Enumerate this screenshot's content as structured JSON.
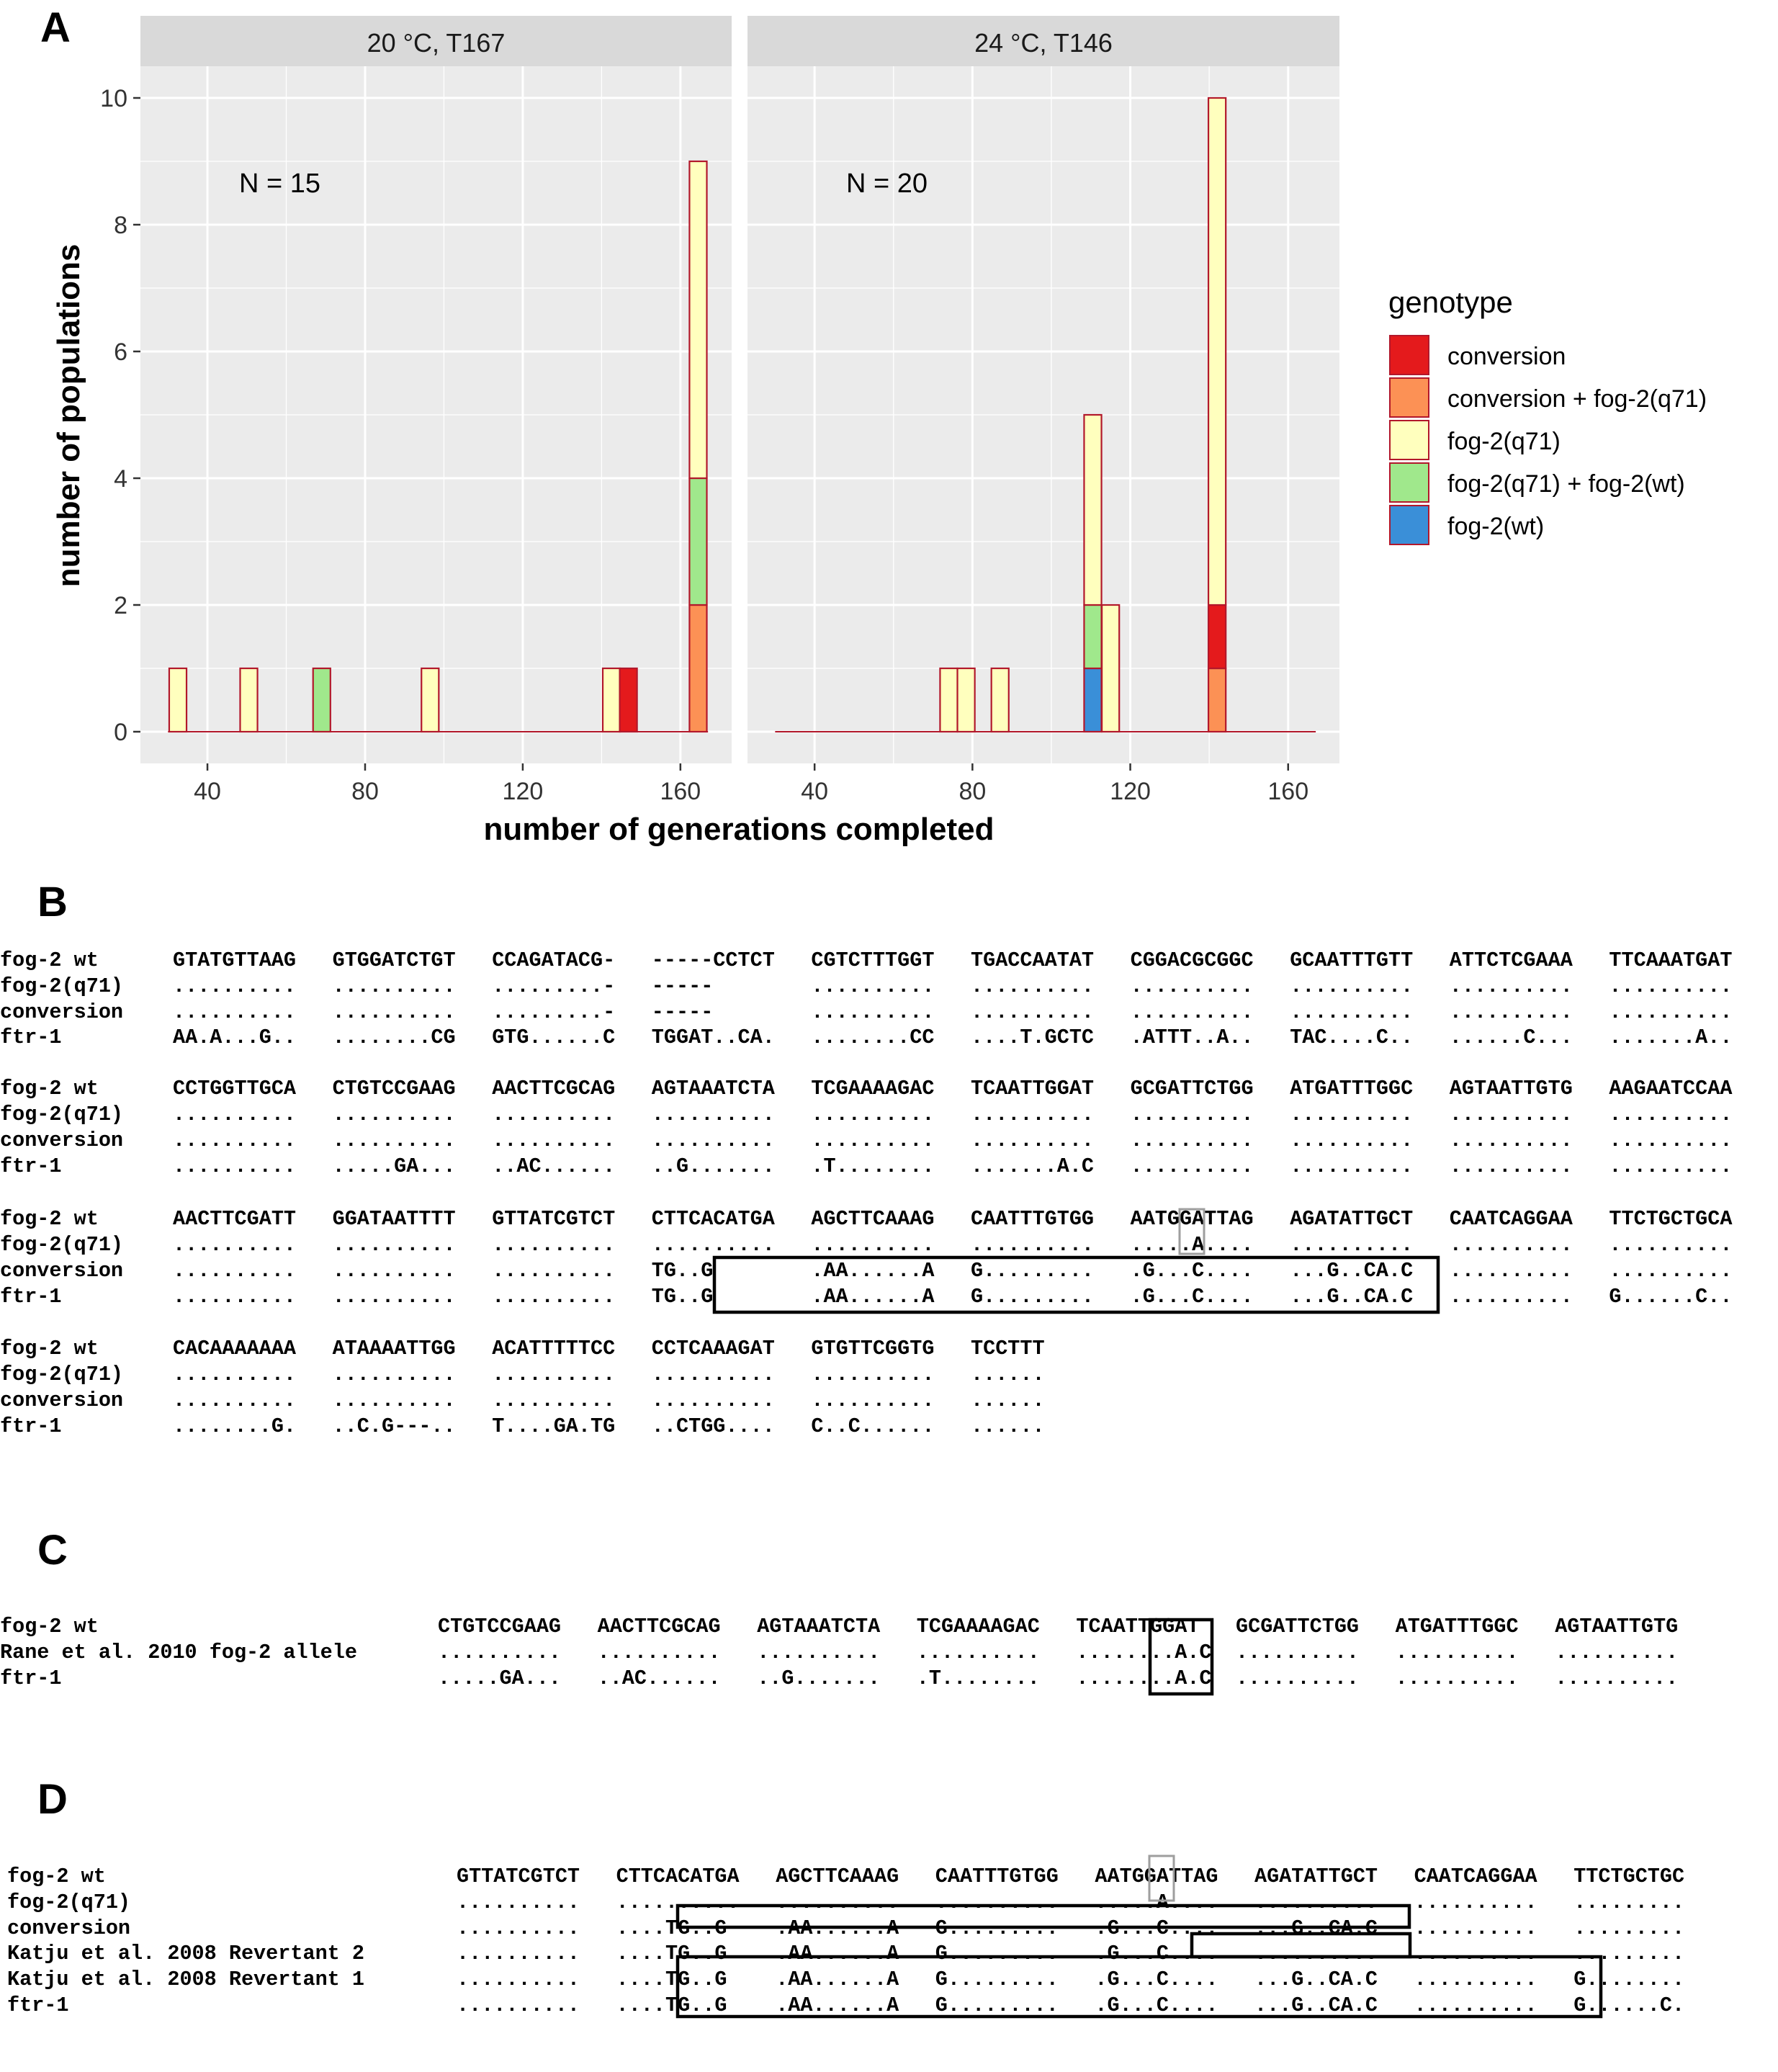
{
  "panel_letters": {
    "A": "A",
    "B": "B",
    "C": "C",
    "D": "D"
  },
  "colors": {
    "conversion": "#e41a1c",
    "conversion + fog-2(q71)": "#fc9155",
    "fog-2(q71)": "#ffffbe",
    "fog-2(q71) + fog-2(wt)": "#a0e88c",
    "fog-2(wt)": "#3a8fd8",
    "bar_outline": "#b2182b",
    "panel_bg": "#ebebeb",
    "strip_bg": "#d9d9d9"
  },
  "chart_data": {
    "type": "bar",
    "stacked": true,
    "xlabel": "number of generations completed",
    "ylabel": "number of populations",
    "xlim": [
      23,
      173
    ],
    "ylim": [
      -0.5,
      10.5
    ],
    "xticks": [
      "40",
      "80",
      "120",
      "160"
    ],
    "yticks": [
      "0",
      "2",
      "4",
      "6",
      "8",
      "10"
    ],
    "grid": true,
    "legend": {
      "title": "genotype",
      "position": "right",
      "entries": [
        "conversion",
        "conversion + fog-2(q71)",
        "fog-2(q71)",
        "fog-2(q71) + fog-2(wt)",
        "fog-2(wt)"
      ]
    },
    "bin_width": 4.4,
    "facets": [
      {
        "strip": "20 °C, T167",
        "n_label": "N = 15",
        "baseline_range": [
          30,
          167
        ],
        "bars": [
          {
            "x": 32.5,
            "stack": [
              {
                "genotype": "fog-2(q71)",
                "count": 1
              }
            ]
          },
          {
            "x": 50.5,
            "stack": [
              {
                "genotype": "fog-2(q71)",
                "count": 1
              }
            ]
          },
          {
            "x": 69,
            "stack": [
              {
                "genotype": "fog-2(q71) + fog-2(wt)",
                "count": 1
              }
            ]
          },
          {
            "x": 96.5,
            "stack": [
              {
                "genotype": "fog-2(q71)",
                "count": 1
              }
            ]
          },
          {
            "x": 142.5,
            "stack": [
              {
                "genotype": "fog-2(q71)",
                "count": 1
              }
            ]
          },
          {
            "x": 146.8,
            "stack": [
              {
                "genotype": "conversion",
                "count": 1
              }
            ]
          },
          {
            "x": 164.5,
            "stack": [
              {
                "genotype": "conversion + fog-2(q71)",
                "count": 2
              },
              {
                "genotype": "fog-2(q71) + fog-2(wt)",
                "count": 2
              },
              {
                "genotype": "fog-2(q71)",
                "count": 5
              }
            ]
          }
        ]
      },
      {
        "strip": "24 °C, T146",
        "n_label": "N = 20",
        "baseline_range": [
          30,
          167
        ],
        "bars": [
          {
            "x": 74,
            "stack": [
              {
                "genotype": "fog-2(q71)",
                "count": 1
              }
            ]
          },
          {
            "x": 78.4,
            "stack": [
              {
                "genotype": "fog-2(q71)",
                "count": 1
              }
            ]
          },
          {
            "x": 87,
            "stack": [
              {
                "genotype": "fog-2(q71)",
                "count": 1
              }
            ]
          },
          {
            "x": 110.5,
            "stack": [
              {
                "genotype": "fog-2(wt)",
                "count": 1
              },
              {
                "genotype": "fog-2(q71) + fog-2(wt)",
                "count": 1
              },
              {
                "genotype": "fog-2(q71)",
                "count": 3
              }
            ]
          },
          {
            "x": 115,
            "stack": [
              {
                "genotype": "fog-2(q71)",
                "count": 2
              }
            ]
          },
          {
            "x": 142,
            "stack": [
              {
                "genotype": "conversion + fog-2(q71)",
                "count": 1
              },
              {
                "genotype": "conversion",
                "count": 1
              },
              {
                "genotype": "fog-2(q71)",
                "count": 8
              }
            ]
          }
        ]
      }
    ]
  },
  "panel_b": {
    "rows": [
      {
        "label": "fog-2 wt",
        "blocks": [
          "GTATGTTAAG",
          "GTGGATCTGT",
          "CCAGATACG-",
          "-----CCTCT",
          "CGTCTTTGGT",
          "TGACCAATAT",
          "CGGACGCGGC",
          "GCAATTTGTT",
          "ATTCTCGAAA",
          "TTCAAATGAT"
        ]
      },
      {
        "label": "fog-2(q71)",
        "blocks": [
          "..........",
          "..........",
          ".........-",
          "-----",
          "..........",
          "..........",
          "..........",
          "..........",
          "..........",
          ".........."
        ]
      },
      {
        "label": "conversion",
        "blocks": [
          "..........",
          "..........",
          ".........-",
          "-----",
          "..........",
          "..........",
          "..........",
          "..........",
          "..........",
          ".........."
        ]
      },
      {
        "label": "ftr-1",
        "blocks": [
          "AA.A...G..",
          "........CG",
          "GTG......C",
          "TGGAT..CA.",
          "........CC",
          "....T.GCTC",
          ".ATTT..A..",
          "TAC....C..",
          "......C...",
          ".......A.."
        ]
      },
      {
        "label": "fog-2 wt",
        "blocks": [
          "CCTGGTTGCA",
          "CTGTCCGAAG",
          "AACTTCGCAG",
          "AGTAAATCTA",
          "TCGAAAAGAC",
          "TCAATTGGAT",
          "GCGATTCTGG",
          "ATGATTTGGC",
          "AGTAATTGTG",
          "AAGAATCCAA"
        ]
      },
      {
        "label": "fog-2(q71)",
        "blocks": [
          "..........",
          "..........",
          "..........",
          "..........",
          "..........",
          "..........",
          "..........",
          "..........",
          "..........",
          ".........."
        ]
      },
      {
        "label": "conversion",
        "blocks": [
          "..........",
          "..........",
          "..........",
          "..........",
          "..........",
          "..........",
          "..........",
          "..........",
          "..........",
          ".........."
        ]
      },
      {
        "label": "ftr-1",
        "blocks": [
          "..........",
          ".....GA...",
          "..AC......",
          "..G.......",
          ".T........",
          ".......A.C",
          "..........",
          "..........",
          "..........",
          ".........."
        ]
      },
      {
        "label": "fog-2 wt",
        "blocks": [
          "AACTTCGATT",
          "GGATAATTTT",
          "GTTATCGTCT",
          "CTTCACATGA",
          "AGCTTCAAAG",
          "CAATTTGTGG",
          "AATGGATTAG",
          "AGATATTGCT",
          "CAATCAGGAA",
          "TTCTGCTGCA"
        ]
      },
      {
        "label": "fog-2(q71)",
        "blocks": [
          "..........",
          "..........",
          "..........",
          "..........",
          "..........",
          "..........",
          ".....A....",
          "..........",
          "..........",
          ".........."
        ]
      },
      {
        "label": "conversion",
        "blocks": [
          "..........",
          "..........",
          "..........",
          "TG..G",
          ".AA......A",
          "G.........",
          ".G...C....",
          "...G..CA.C",
          "..........",
          ".........."
        ]
      },
      {
        "label": "ftr-1",
        "blocks": [
          "..........",
          "..........",
          "..........",
          "TG..G",
          ".AA......A",
          "G.........",
          ".G...C....",
          "...G..CA.C",
          "..........",
          "G......C.."
        ]
      },
      {
        "label": "fog-2 wt",
        "blocks": [
          "CACAAAAAAA",
          "ATAAAATTGG",
          "ACATTTTTCC",
          "CCTCAAAGAT",
          "GTGTTCGGTG",
          "TCCTTT"
        ]
      },
      {
        "label": "fog-2(q71)",
        "blocks": [
          "..........",
          "..........",
          "..........",
          "..........",
          "..........",
          "......"
        ]
      },
      {
        "label": "conversion",
        "blocks": [
          "..........",
          "..........",
          "..........",
          "..........",
          "..........",
          "......"
        ]
      },
      {
        "label": "ftr-1",
        "blocks": [
          "........G.",
          "..C.G---..",
          "T....GA.TG",
          "..CTGG....",
          "C..C......",
          "......"
        ]
      }
    ]
  },
  "panel_c": {
    "rows": [
      {
        "label": "fog-2 wt",
        "blocks": [
          "CTGTCCGAAG",
          "AACTTCGCAG",
          "AGTAAATCTA",
          "TCGAAAAGAC",
          "TCAATTGGAT",
          "GCGATTCTGG",
          "ATGATTTGGC",
          "AGTAATTGTG"
        ]
      },
      {
        "label": "Rane et al. 2010 fog-2 allele",
        "blocks": [
          "..........",
          "..........",
          "..........",
          "..........",
          "........A.C",
          "..........",
          "..........",
          ".........."
        ]
      },
      {
        "label": "ftr-1",
        "blocks": [
          ".....GA...",
          "..AC......",
          "..G.......",
          ".T........",
          "........A.C",
          "..........",
          "..........",
          ".........."
        ]
      }
    ]
  },
  "panel_d": {
    "rows": [
      {
        "label": "fog-2 wt",
        "blocks": [
          "GTTATCGTCT",
          "CTTCACATGA",
          "AGCTTCAAAG",
          "CAATTTGTGG",
          "AATGGATTAG",
          "AGATATTGCT",
          "CAATCAGGAA",
          "TTCTGCTGC"
        ]
      },
      {
        "label": "fog-2(q71)",
        "blocks": [
          "..........",
          "..........",
          "..........",
          "..........",
          ".....A....",
          "..........",
          "..........",
          "........."
        ]
      },
      {
        "label": "conversion",
        "blocks": [
          "..........",
          "....TG..G",
          ".AA......A",
          "G.........",
          ".G...C....",
          "...G..CA.C",
          "..........",
          "........."
        ]
      },
      {
        "label": "Katju et al. 2008 Revertant 2",
        "blocks": [
          "..........",
          "....TG..G",
          ".AA......A",
          "G.........",
          ".G...C....",
          "..........",
          "..........",
          "........."
        ]
      },
      {
        "label": "Katju et al. 2008 Revertant 1",
        "blocks": [
          "..........",
          "....TG..G",
          ".AA......A",
          "G.........",
          ".G...C....",
          "...G..CA.C",
          "..........",
          "G........"
        ]
      },
      {
        "label": "ftr-1",
        "blocks": [
          "..........",
          "....TG..G",
          ".AA......A",
          "G.........",
          ".G...C....",
          "...G..CA.C",
          "..........",
          "G......C."
        ]
      }
    ]
  }
}
